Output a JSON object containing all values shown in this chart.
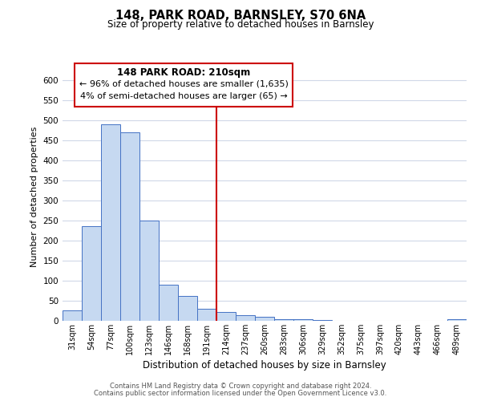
{
  "title": "148, PARK ROAD, BARNSLEY, S70 6NA",
  "subtitle": "Size of property relative to detached houses in Barnsley",
  "xlabel": "Distribution of detached houses by size in Barnsley",
  "ylabel": "Number of detached properties",
  "bar_labels": [
    "31sqm",
    "54sqm",
    "77sqm",
    "100sqm",
    "123sqm",
    "146sqm",
    "168sqm",
    "191sqm",
    "214sqm",
    "237sqm",
    "260sqm",
    "283sqm",
    "306sqm",
    "329sqm",
    "352sqm",
    "375sqm",
    "397sqm",
    "420sqm",
    "443sqm",
    "466sqm",
    "489sqm"
  ],
  "bar_values": [
    26,
    237,
    490,
    470,
    250,
    90,
    63,
    31,
    23,
    15,
    11,
    5,
    5,
    2,
    1,
    1,
    0,
    1,
    0,
    0,
    4
  ],
  "bar_color": "#c6d9f1",
  "bar_edge_color": "#4472c4",
  "vline_index": 8,
  "vline_color": "#cc0000",
  "ylim": [
    0,
    620
  ],
  "yticks": [
    0,
    50,
    100,
    150,
    200,
    250,
    300,
    350,
    400,
    450,
    500,
    550,
    600
  ],
  "annotation_title": "148 PARK ROAD: 210sqm",
  "annotation_line1": "← 96% of detached houses are smaller (1,635)",
  "annotation_line2": "4% of semi-detached houses are larger (65) →",
  "annotation_box_color": "#ffffff",
  "annotation_box_edge": "#cc0000",
  "footnote1": "Contains HM Land Registry data © Crown copyright and database right 2024.",
  "footnote2": "Contains public sector information licensed under the Open Government Licence v3.0.",
  "background_color": "#ffffff",
  "grid_color": "#d0d8e8"
}
